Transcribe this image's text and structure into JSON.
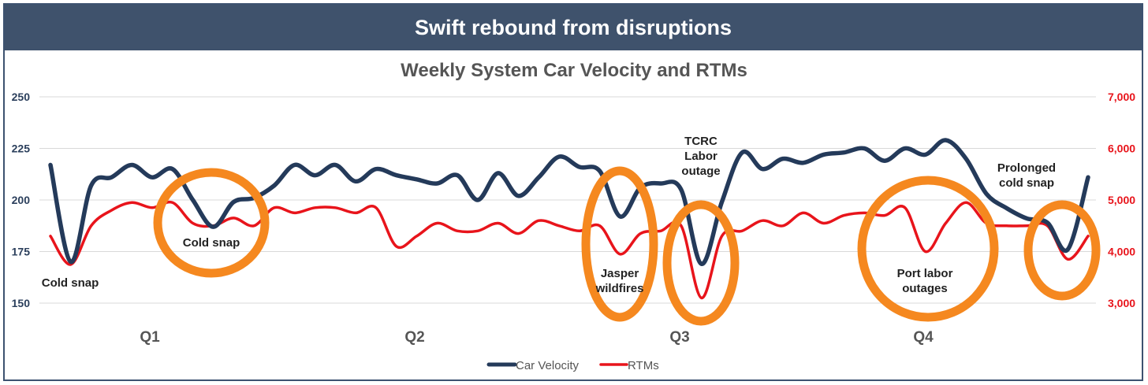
{
  "banner": {
    "title": "Swift rebound from disruptions"
  },
  "chart_data": {
    "type": "line",
    "title": "Weekly System Car Velocity and RTMs",
    "categories": [
      "Q1",
      "Q2",
      "Q3",
      "Q4"
    ],
    "y_left": {
      "ticks": [
        "250",
        "225",
        "200",
        "175",
        "150"
      ],
      "ylim": [
        150,
        250
      ]
    },
    "y_right": {
      "ticks": [
        "7,000",
        "6,000",
        "5,000",
        "4,000",
        "3,000"
      ],
      "ylim": [
        3000,
        7000
      ]
    },
    "grid": true,
    "legend_position": "bottom",
    "series": [
      {
        "name": "Car Velocity",
        "axis": "left",
        "color": "#243a5a",
        "x": [
          0,
          1,
          2,
          3,
          4,
          5,
          6,
          7,
          8,
          9,
          10,
          11,
          12,
          13,
          14,
          15,
          16,
          17,
          18,
          19,
          20,
          21,
          22,
          23,
          24,
          25,
          26,
          27,
          28,
          29,
          30,
          31,
          32,
          33,
          34,
          35,
          36,
          37,
          38,
          39,
          40,
          41,
          42,
          43,
          44,
          45,
          46,
          47,
          48,
          49,
          50,
          51
        ],
        "values": [
          217,
          170,
          207,
          211,
          217,
          211,
          215,
          200,
          187,
          199,
          201,
          207,
          217,
          212,
          217,
          209,
          215,
          212,
          210,
          208,
          212,
          200,
          213,
          202,
          211,
          221,
          216,
          214,
          192,
          206,
          208,
          205,
          169,
          199,
          223,
          215,
          220,
          218,
          222,
          223,
          225,
          219,
          225,
          222,
          229,
          220,
          203,
          196,
          191,
          189,
          176,
          211
        ]
      },
      {
        "name": "RTMs",
        "axis": "right",
        "color": "#e8141b",
        "x": [
          0,
          1,
          2,
          3,
          4,
          5,
          6,
          7,
          8,
          9,
          10,
          11,
          12,
          13,
          14,
          15,
          16,
          17,
          18,
          19,
          20,
          21,
          22,
          23,
          24,
          25,
          26,
          27,
          28,
          29,
          30,
          31,
          32,
          33,
          34,
          35,
          36,
          37,
          38,
          39,
          40,
          41,
          42,
          43,
          44,
          45,
          46,
          47,
          48,
          49,
          50,
          51
        ],
        "values": [
          4300,
          3750,
          4500,
          4800,
          4950,
          4850,
          4950,
          4550,
          4500,
          4650,
          4500,
          4850,
          4750,
          4850,
          4850,
          4750,
          4850,
          4100,
          4300,
          4550,
          4400,
          4400,
          4550,
          4350,
          4600,
          4500,
          4400,
          4500,
          3950,
          4350,
          4400,
          4500,
          3100,
          4300,
          4400,
          4600,
          4500,
          4750,
          4550,
          4700,
          4750,
          4700,
          4850,
          4000,
          4550,
          4950,
          4550,
          4500,
          4500,
          4500,
          3850,
          4300
        ]
      }
    ],
    "annotations": [
      {
        "lines": [
          "Cold snap"
        ]
      },
      {
        "lines": [
          "Cold snap"
        ]
      },
      {
        "lines": [
          "Jasper",
          "wildfires"
        ]
      },
      {
        "lines": [
          "TCRC",
          "Labor",
          "outage"
        ]
      },
      {
        "lines": [
          "Port labor",
          "outages"
        ]
      },
      {
        "lines": [
          "Prolonged",
          "cold snap"
        ]
      }
    ],
    "highlight_color": "#f5881f"
  }
}
